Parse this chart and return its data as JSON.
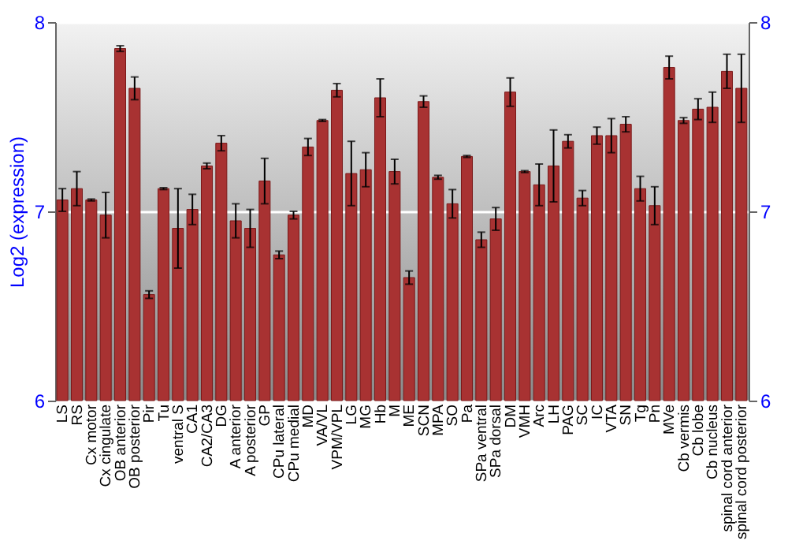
{
  "chart_data": {
    "type": "bar",
    "ylabel": "Log2 (expression)",
    "categories": [
      "LS",
      "RS",
      "Cx motor",
      "Cx cingulate",
      "OB anterior",
      "OB posterior",
      "Pir",
      "Tu",
      "ventral S",
      "CA1",
      "CA2/CA3",
      "DG",
      "A anterior",
      "A posterior",
      "GP",
      "CPu lateral",
      "CPu medial",
      "MD",
      "VA/VL",
      "VPM/VPL",
      "LG",
      "MG",
      "Hb",
      "M",
      "ME",
      "SCN",
      "MPA",
      "SO",
      "Pa",
      "SPa ventral",
      "SPa dorsal",
      "DM",
      "VMH",
      "Arc",
      "LH",
      "PAG",
      "SC",
      "IC",
      "VTA",
      "SN",
      "Tg",
      "Pn",
      "MVe",
      "Cb vermis",
      "Cb lobe",
      "Cb nucleus",
      "spinal cord anterior",
      "spinal cord posterior"
    ],
    "series": [
      {
        "color": "#a83232",
        "values": [
          7.06,
          7.12,
          7.06,
          6.98,
          7.86,
          7.65,
          6.56,
          7.12,
          6.91,
          7.01,
          7.24,
          7.36,
          6.95,
          6.91,
          7.16,
          6.77,
          6.98,
          7.34,
          7.48,
          7.64,
          7.2,
          7.22,
          7.6,
          7.21,
          6.65,
          7.58,
          7.18,
          7.04,
          7.29,
          6.85,
          6.96,
          7.63,
          7.21,
          7.14,
          7.24,
          7.37,
          7.07,
          7.4,
          7.4,
          7.46,
          7.12,
          7.03,
          7.76,
          7.48,
          7.54,
          7.55,
          7.74,
          7.65
        ],
        "errors": [
          0.06,
          0.09,
          0.005,
          0.12,
          0.015,
          0.06,
          0.02,
          0.005,
          0.21,
          0.08,
          0.015,
          0.04,
          0.09,
          0.1,
          0.12,
          0.02,
          0.02,
          0.045,
          0.005,
          0.035,
          0.17,
          0.09,
          0.1,
          0.065,
          0.035,
          0.03,
          0.01,
          0.075,
          0.005,
          0.04,
          0.06,
          0.075,
          0.005,
          0.11,
          0.19,
          0.035,
          0.04,
          0.045,
          0.09,
          0.04,
          0.065,
          0.1,
          0.06,
          0.015,
          0.055,
          0.08,
          0.09,
          0.18
        ]
      }
    ],
    "ylim": [
      6,
      8
    ],
    "yticks": [
      6,
      7,
      8
    ],
    "y2lim": [
      6,
      8
    ],
    "y2ticks": [
      6,
      7,
      8
    ],
    "grid": "y"
  }
}
